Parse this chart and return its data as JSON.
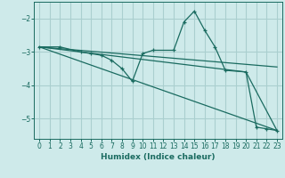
{
  "xlabel": "Humidex (Indice chaleur)",
  "background_color": "#ceeaea",
  "grid_color": "#aacfcf",
  "line_color": "#1a6b60",
  "xlim": [
    -0.5,
    23.5
  ],
  "ylim": [
    -5.6,
    -1.5
  ],
  "yticks": [
    -5,
    -4,
    -3,
    -2
  ],
  "xticks": [
    0,
    1,
    2,
    3,
    4,
    5,
    6,
    7,
    8,
    9,
    10,
    11,
    12,
    13,
    14,
    15,
    16,
    17,
    18,
    19,
    20,
    21,
    22,
    23
  ],
  "series": [
    {
      "x": [
        0,
        2,
        4,
        5,
        6,
        7,
        8,
        9,
        10,
        11,
        13,
        14,
        15,
        16,
        17,
        18,
        20,
        21,
        22,
        23
      ],
      "y": [
        -2.85,
        -2.85,
        -3.0,
        -3.05,
        -3.1,
        -3.25,
        -3.5,
        -3.88,
        -3.05,
        -2.95,
        -2.95,
        -2.1,
        -1.78,
        -2.35,
        -2.85,
        -3.55,
        -3.6,
        -5.25,
        -5.3,
        -5.35
      ],
      "marker": "+"
    },
    {
      "x": [
        0,
        23
      ],
      "y": [
        -2.85,
        -3.45
      ],
      "marker": null
    },
    {
      "x": [
        0,
        23
      ],
      "y": [
        -2.85,
        -5.35
      ],
      "marker": null
    },
    {
      "x": [
        0,
        20,
        23
      ],
      "y": [
        -2.85,
        -3.6,
        -5.35
      ],
      "marker": null
    }
  ]
}
